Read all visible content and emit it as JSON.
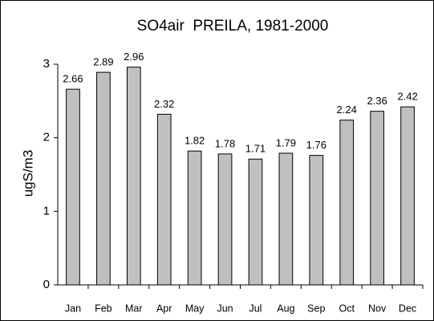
{
  "chart_data": {
    "type": "bar",
    "title": "SO4air  PREILA, 1981-2000",
    "y_label": "ugS/m3",
    "categories": [
      "Jan",
      "Feb",
      "Mar",
      "Apr",
      "May",
      "Jun",
      "Jul",
      "Aug",
      "Sep",
      "Oct",
      "Nov",
      "Dec"
    ],
    "values": [
      2.66,
      2.89,
      2.96,
      2.32,
      1.82,
      1.78,
      1.71,
      1.79,
      1.76,
      2.24,
      2.36,
      2.42
    ],
    "color": "#c0c0c0",
    "ylim": [
      0,
      3
    ],
    "yticks": [
      0,
      1,
      2,
      3
    ],
    "grid": false
  }
}
